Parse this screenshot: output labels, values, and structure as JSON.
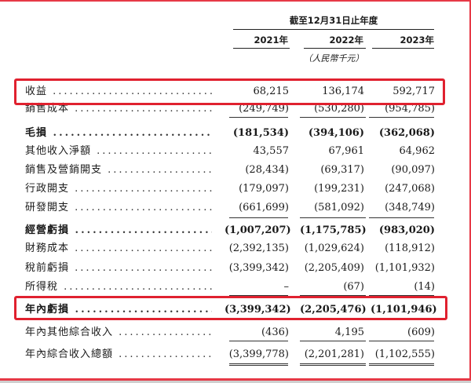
{
  "header": {
    "period_title": "截至12月31日止年度",
    "years": [
      "2021年",
      "2022年",
      "2023年"
    ],
    "unit": "（人民幣千元）"
  },
  "rows": [
    {
      "label": "收益",
      "values": [
        "68,215",
        "136,174",
        "592,717"
      ],
      "bold": false
    },
    {
      "label": "銷售成本",
      "values": [
        "(249,749)",
        "(530,280)",
        "(954,785)"
      ],
      "bold": false
    },
    {
      "label": "毛損",
      "values": [
        "(181,534)",
        "(394,106)",
        "(362,068)"
      ],
      "bold": true
    },
    {
      "label": "其他收入淨額",
      "values": [
        "43,557",
        "67,961",
        "64,962"
      ],
      "bold": false
    },
    {
      "label": "銷售及營銷開支",
      "values": [
        "(28,434)",
        "(69,317)",
        "(90,097)"
      ],
      "bold": false
    },
    {
      "label": "行政開支",
      "values": [
        "(179,097)",
        "(199,231)",
        "(247,068)"
      ],
      "bold": false
    },
    {
      "label": "研發開支",
      "values": [
        "(661,699)",
        "(581,092)",
        "(348,749)"
      ],
      "bold": false
    },
    {
      "label": "經營虧損",
      "values": [
        "(1,007,207)",
        "(1,175,785)",
        "(983,020)"
      ],
      "bold": true
    },
    {
      "label": "財務成本",
      "values": [
        "(2,392,135)",
        "(1,029,624)",
        "(118,912)"
      ],
      "bold": false
    },
    {
      "label": "稅前虧損",
      "values": [
        "(3,399,342)",
        "(2,205,409)",
        "(1,101,932)"
      ],
      "bold": false
    },
    {
      "label": "所得稅",
      "values": [
        "–",
        "(67)",
        "(14)"
      ],
      "bold": false
    },
    {
      "label": "年內虧損",
      "values": [
        "(3,399,342)",
        "(2,205,476)",
        "(1,101,946)"
      ],
      "bold": true
    },
    {
      "label": "年內其他綜合收入",
      "values": [
        "(436)",
        "4,195",
        "(609)"
      ],
      "bold": false
    },
    {
      "label": "年內綜合收入總額",
      "values": [
        "(3,399,778)",
        "(2,201,281)",
        "(1,102,555)"
      ],
      "bold": false
    }
  ],
  "highlight_color": "#e0212f"
}
